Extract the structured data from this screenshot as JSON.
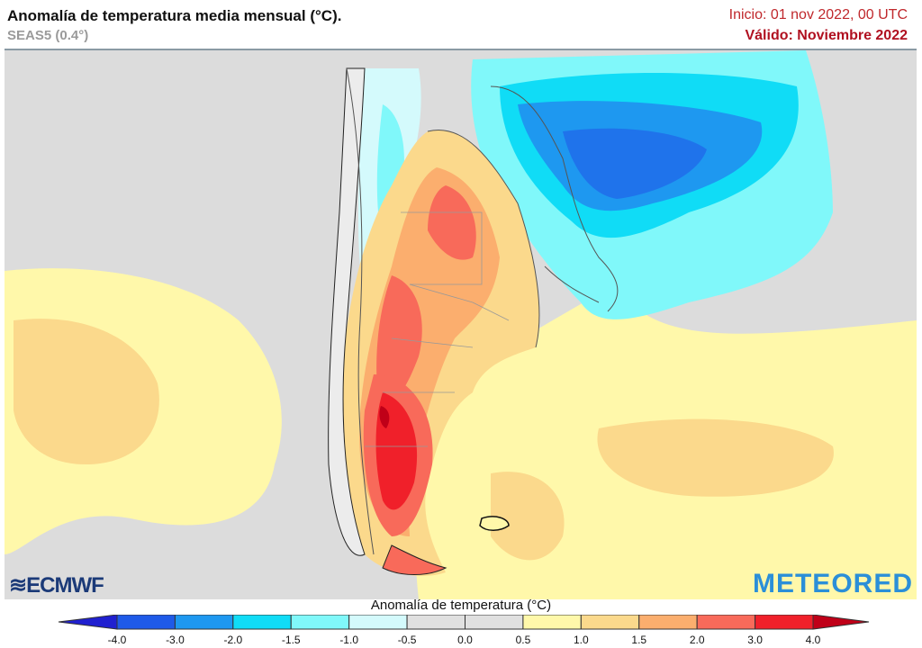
{
  "header": {
    "title": "Anomalía de temperatura media mensual (°C).",
    "model": "SEAS5 (0.4°)",
    "init": "Inicio: 01 nov 2022, 00 UTC",
    "valid": "Válido: Noviembre 2022"
  },
  "logos": {
    "left": "ECMWF",
    "right": "METEORED"
  },
  "colorbar": {
    "title": "Anomalía de temperatura (°C)",
    "ticks": [
      "-4.0",
      "-3.0",
      "-2.0",
      "-1.5",
      "-1.0",
      "-0.5",
      "0.0",
      "0.5",
      "1.0",
      "1.5",
      "2.0",
      "3.0",
      "4.0"
    ],
    "colors": [
      "#1f5ae8",
      "#1e98f0",
      "#10dcf6",
      "#80f8fa",
      "#d4fafc",
      "#e0e0e0",
      "#e0e0e0",
      "#fff8aa",
      "#fbd98c",
      "#fbae6e",
      "#f86a5a",
      "#f0202a"
    ],
    "under_color": "#2020d0",
    "over_color": "#c00018"
  }
}
